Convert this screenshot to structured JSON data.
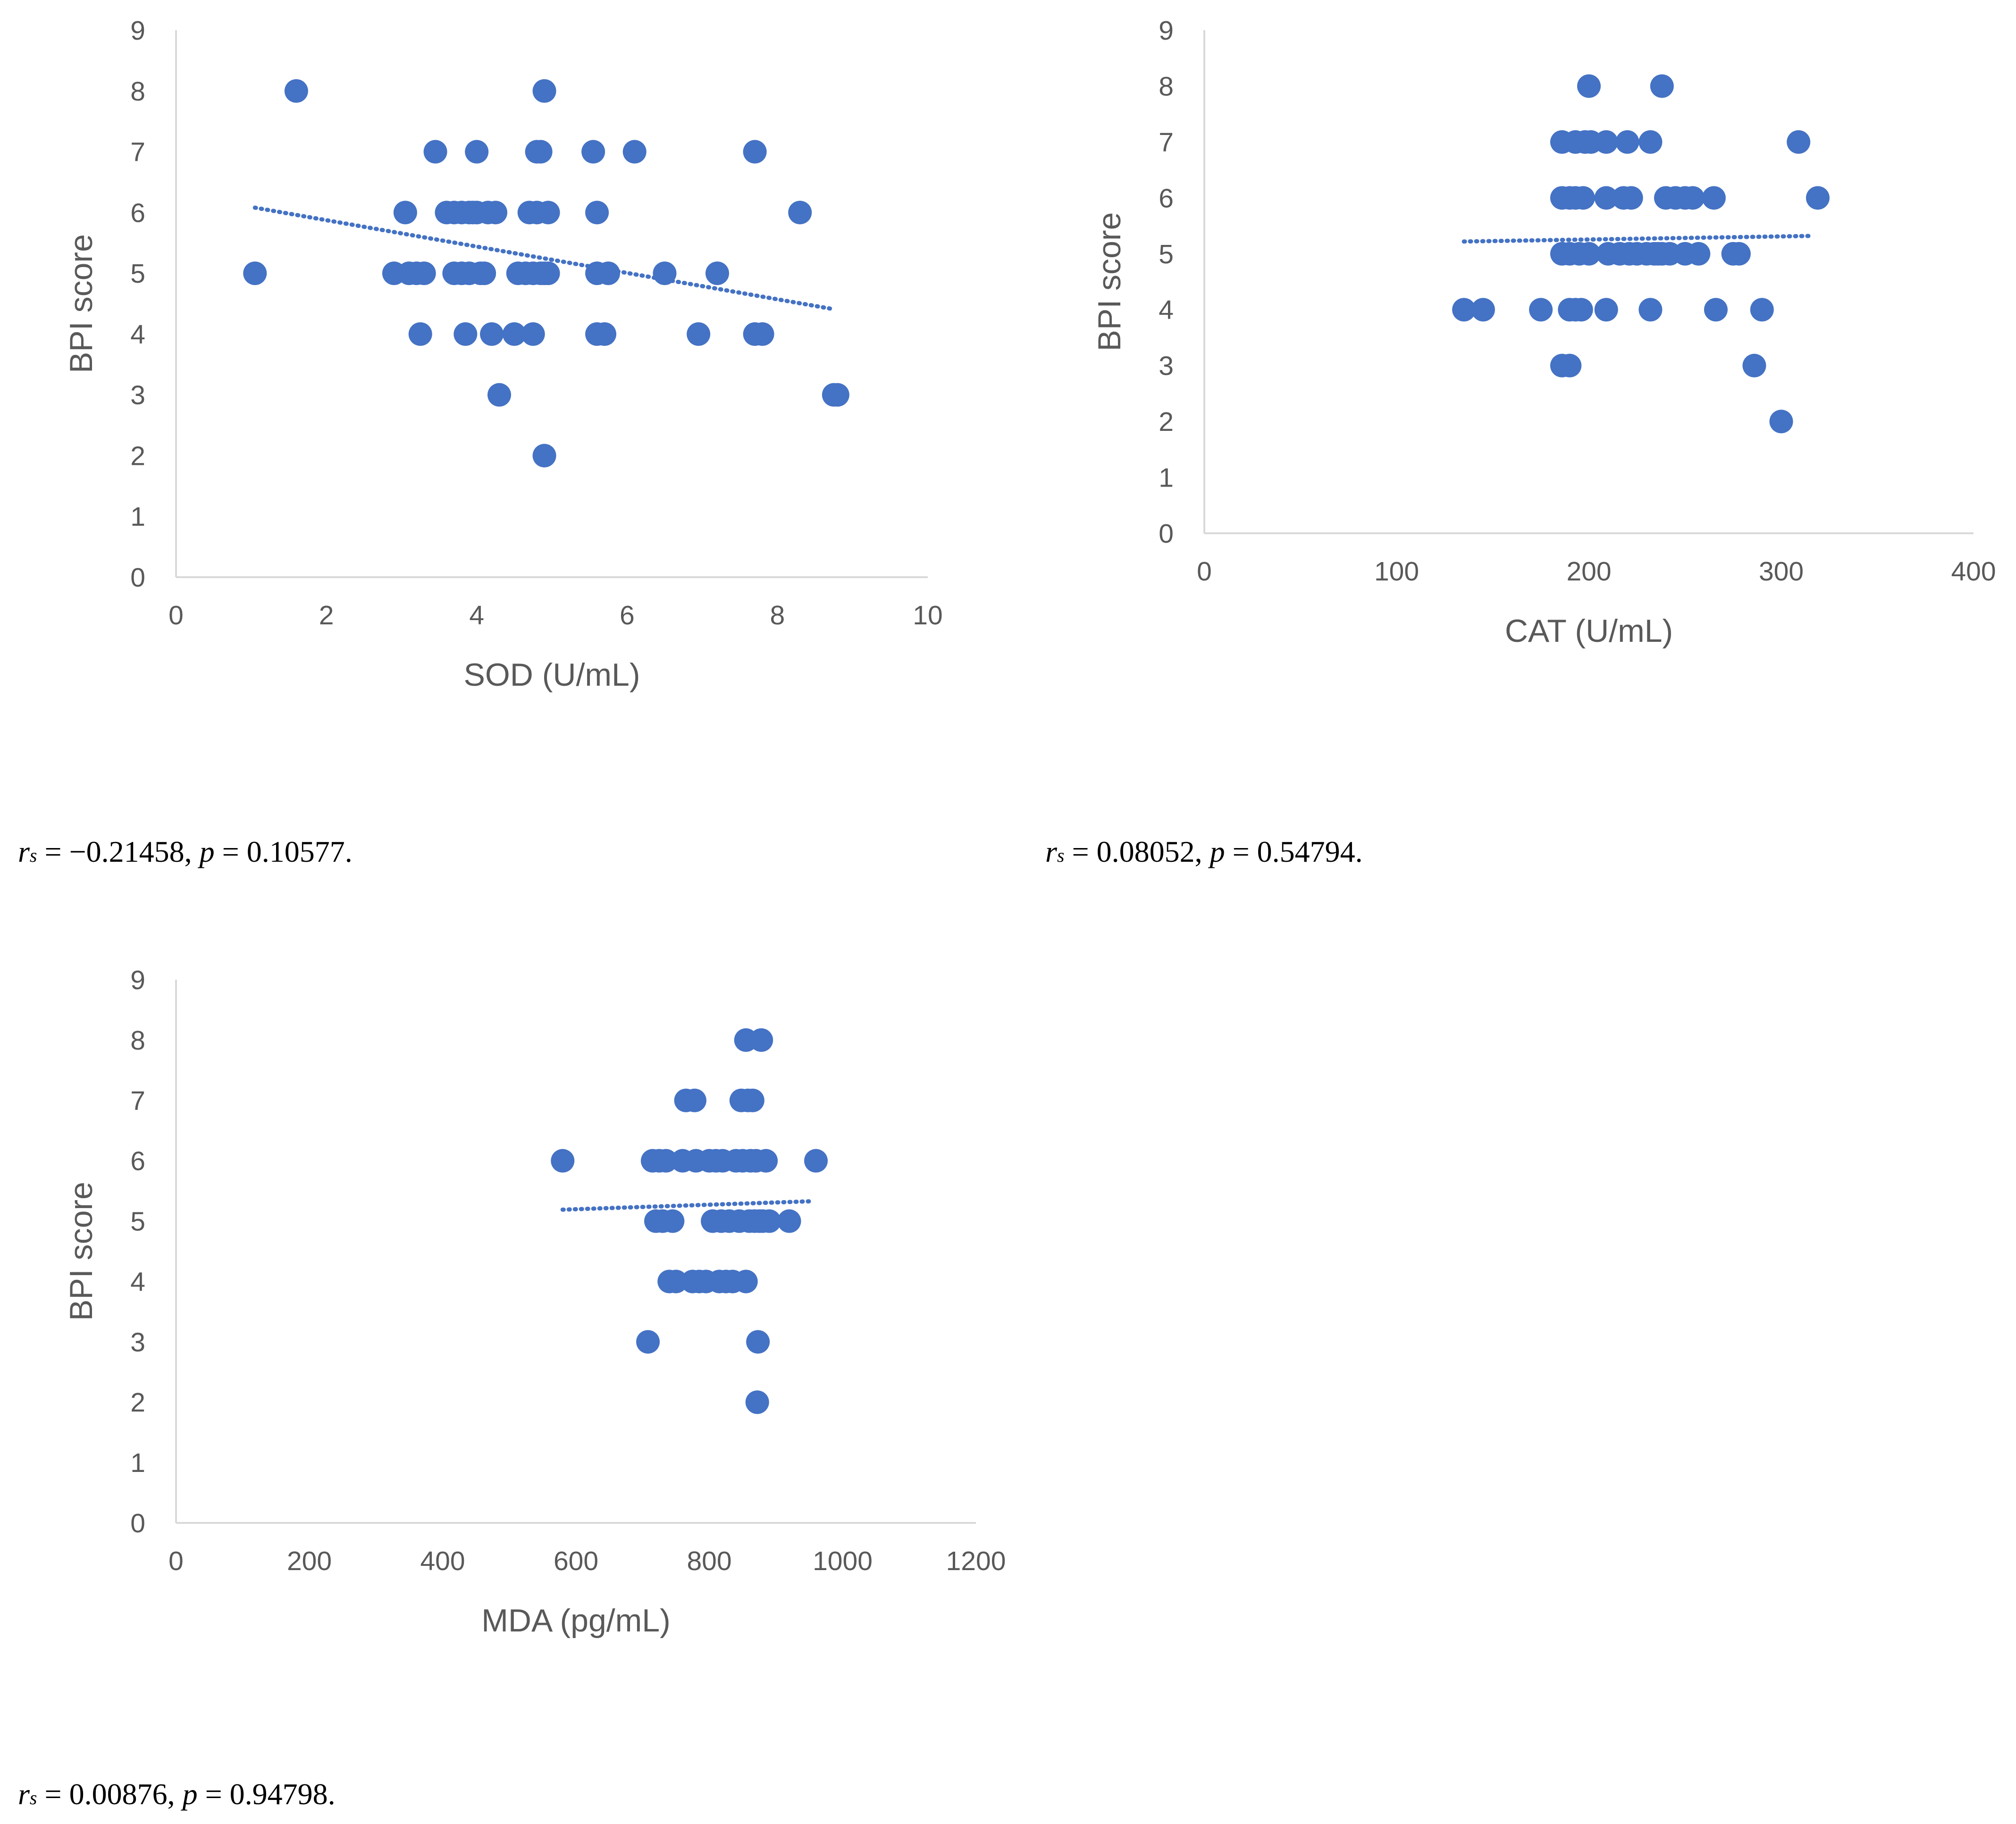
{
  "chart_data": [
    {
      "type": "scatter",
      "title": "",
      "xlabel": "SOD (U/mL)",
      "ylabel": "BPI score",
      "xlim": [
        0,
        10
      ],
      "ylim": [
        0,
        9
      ],
      "x_ticks": [
        "0",
        "2",
        "4",
        "6",
        "8",
        "10"
      ],
      "y_ticks": [
        "0",
        "1",
        "2",
        "3",
        "4",
        "5",
        "6",
        "7",
        "8",
        "9"
      ],
      "grid": false,
      "series": [
        {
          "name": "BPI score",
          "color": "#4472C4",
          "points": [
            [
              1.05,
              5
            ],
            [
              1.6,
              8
            ],
            [
              2.9,
              5
            ],
            [
              3.05,
              6
            ],
            [
              3.1,
              5
            ],
            [
              3.2,
              5
            ],
            [
              3.25,
              4
            ],
            [
              3.3,
              5
            ],
            [
              3.45,
              7
            ],
            [
              3.6,
              6
            ],
            [
              3.7,
              5
            ],
            [
              3.7,
              6
            ],
            [
              3.8,
              5
            ],
            [
              3.8,
              6
            ],
            [
              3.85,
              4
            ],
            [
              3.9,
              6
            ],
            [
              3.9,
              5
            ],
            [
              3.95,
              6
            ],
            [
              4.0,
              7
            ],
            [
              4.0,
              6
            ],
            [
              4.05,
              5
            ],
            [
              4.1,
              5
            ],
            [
              4.15,
              6
            ],
            [
              4.2,
              4
            ],
            [
              4.25,
              6
            ],
            [
              4.3,
              3
            ],
            [
              4.5,
              4
            ],
            [
              4.55,
              5
            ],
            [
              4.65,
              5
            ],
            [
              4.7,
              6
            ],
            [
              4.75,
              4
            ],
            [
              4.75,
              5
            ],
            [
              4.8,
              7
            ],
            [
              4.8,
              6
            ],
            [
              4.85,
              5
            ],
            [
              4.85,
              7
            ],
            [
              4.9,
              8
            ],
            [
              4.9,
              2
            ],
            [
              4.9,
              5
            ],
            [
              4.95,
              6
            ],
            [
              4.95,
              5
            ],
            [
              5.55,
              7
            ],
            [
              5.6,
              6
            ],
            [
              5.6,
              5
            ],
            [
              5.6,
              4
            ],
            [
              5.7,
              4
            ],
            [
              5.75,
              5
            ],
            [
              6.1,
              7
            ],
            [
              6.5,
              5
            ],
            [
              6.95,
              4
            ],
            [
              7.2,
              5
            ],
            [
              7.7,
              7
            ],
            [
              7.7,
              4
            ],
            [
              7.8,
              4
            ],
            [
              8.3,
              6
            ],
            [
              8.75,
              3
            ],
            [
              8.8,
              3
            ]
          ]
        }
      ],
      "trendline": {
        "type": "linear",
        "style": "dotted",
        "x": [
          1.05,
          8.7
        ],
        "y": [
          6.08,
          4.42
        ]
      },
      "annotation": {
        "r_label": "r",
        "r_sub": "s",
        "eq1": " = −0.21458, ",
        "p_label": "p",
        "eq2": " = 0.10577."
      }
    },
    {
      "type": "scatter",
      "title": "",
      "xlabel": "CAT (U/mL)",
      "ylabel": "BPI score",
      "xlim": [
        0,
        400
      ],
      "ylim": [
        0,
        9
      ],
      "x_ticks": [
        "0",
        "100",
        "200",
        "300",
        "400"
      ],
      "y_ticks": [
        "0",
        "1",
        "2",
        "3",
        "4",
        "5",
        "6",
        "7",
        "8",
        "9"
      ],
      "grid": false,
      "series": [
        {
          "name": "BPI score",
          "color": "#4472C4",
          "points": [
            [
              135,
              4
            ],
            [
              145,
              4
            ],
            [
              175,
              4
            ],
            [
              186,
              3
            ],
            [
              186,
              5
            ],
            [
              186,
              6
            ],
            [
              186,
              7
            ],
            [
              190,
              3
            ],
            [
              190,
              4
            ],
            [
              190,
              5
            ],
            [
              190,
              6
            ],
            [
              193,
              4
            ],
            [
              193,
              6
            ],
            [
              193,
              7
            ],
            [
              195,
              5
            ],
            [
              196,
              4
            ],
            [
              197,
              6
            ],
            [
              198,
              7
            ],
            [
              200,
              8
            ],
            [
              200,
              5
            ],
            [
              201,
              7
            ],
            [
              209,
              7
            ],
            [
              209,
              6
            ],
            [
              209,
              4
            ],
            [
              210,
              5
            ],
            [
              216,
              5
            ],
            [
              218,
              6
            ],
            [
              220,
              7
            ],
            [
              221,
              5
            ],
            [
              222,
              6
            ],
            [
              225,
              5
            ],
            [
              230,
              5
            ],
            [
              232,
              7
            ],
            [
              232,
              4
            ],
            [
              234,
              5
            ],
            [
              236,
              5
            ],
            [
              238,
              8
            ],
            [
              238,
              5
            ],
            [
              240,
              6
            ],
            [
              242,
              5
            ],
            [
              245,
              6
            ],
            [
              250,
              6
            ],
            [
              250,
              5
            ],
            [
              254,
              6
            ],
            [
              257,
              5
            ],
            [
              265,
              6
            ],
            [
              266,
              4
            ],
            [
              275,
              5
            ],
            [
              278,
              5
            ],
            [
              286,
              3
            ],
            [
              290,
              4
            ],
            [
              300,
              2
            ],
            [
              309,
              7
            ],
            [
              319,
              6
            ]
          ]
        }
      ],
      "trendline": {
        "type": "linear",
        "style": "dotted",
        "x": [
          135,
          316
        ],
        "y": [
          5.22,
          5.32
        ]
      },
      "annotation": {
        "r_label": "r",
        "r_sub": "s",
        "eq1": " = 0.08052, ",
        "p_label": "p",
        "eq2": " = 0.54794."
      }
    },
    {
      "type": "scatter",
      "title": "",
      "xlabel": "MDA (pg/mL)",
      "ylabel": "BPI score",
      "xlim": [
        0,
        1200
      ],
      "ylim": [
        0,
        9
      ],
      "x_ticks": [
        "0",
        "200",
        "400",
        "600",
        "800",
        "1000",
        "1200"
      ],
      "y_ticks": [
        "0",
        "1",
        "2",
        "3",
        "4",
        "5",
        "6",
        "7",
        "8",
        "9"
      ],
      "grid": false,
      "series": [
        {
          "name": "BPI score",
          "color": "#4472C4",
          "points": [
            [
              580,
              6
            ],
            [
              708,
              3
            ],
            [
              715,
              6
            ],
            [
              720,
              5
            ],
            [
              725,
              6
            ],
            [
              730,
              5
            ],
            [
              735,
              6
            ],
            [
              740,
              4
            ],
            [
              745,
              5
            ],
            [
              750,
              4
            ],
            [
              760,
              6
            ],
            [
              765,
              7
            ],
            [
              775,
              4
            ],
            [
              778,
              7
            ],
            [
              780,
              6
            ],
            [
              785,
              4
            ],
            [
              795,
              4
            ],
            [
              800,
              6
            ],
            [
              805,
              5
            ],
            [
              810,
              6
            ],
            [
              815,
              4
            ],
            [
              818,
              5
            ],
            [
              820,
              6
            ],
            [
              825,
              4
            ],
            [
              830,
              5
            ],
            [
              835,
              4
            ],
            [
              840,
              6
            ],
            [
              845,
              5
            ],
            [
              848,
              7
            ],
            [
              850,
              6
            ],
            [
              855,
              4
            ],
            [
              855,
              8
            ],
            [
              858,
              7
            ],
            [
              860,
              5
            ],
            [
              862,
              6
            ],
            [
              865,
              7
            ],
            [
              868,
              5
            ],
            [
              870,
              6
            ],
            [
              872,
              2
            ],
            [
              873,
              3
            ],
            [
              875,
              5
            ],
            [
              878,
              8
            ],
            [
              880,
              5
            ],
            [
              885,
              6
            ],
            [
              890,
              5
            ],
            [
              920,
              5
            ],
            [
              960,
              6
            ]
          ]
        }
      ],
      "trendline": {
        "type": "linear",
        "style": "dotted",
        "x": [
          580,
          955
        ],
        "y": [
          5.19,
          5.33
        ]
      },
      "annotation": {
        "r_label": "r",
        "r_sub": "s",
        "eq1": " = 0.00876, ",
        "p_label": "p",
        "eq2": " = 0.94798."
      }
    }
  ]
}
